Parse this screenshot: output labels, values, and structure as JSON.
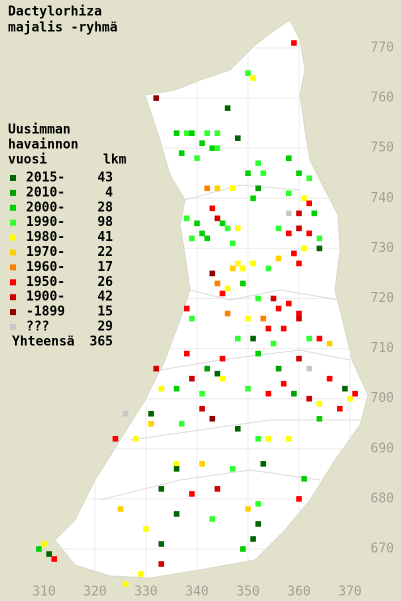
{
  "title_lines": [
    "Dactylorhiza",
    "majalis -ryhmä"
  ],
  "legend": {
    "heading_lines": [
      "Uusimman",
      "havainnon",
      "vuosi"
    ],
    "count_heading": "lkm",
    "entries": [
      {
        "label": "2015-",
        "count": 43,
        "color": "#006400"
      },
      {
        "label": "2010-",
        "count": 4,
        "color": "#00a000"
      },
      {
        "label": "2000-",
        "count": 28,
        "color": "#00d000"
      },
      {
        "label": "1990-",
        "count": 98,
        "color": "#30ff30"
      },
      {
        "label": "1980-",
        "count": 41,
        "color": "#ffff00"
      },
      {
        "label": "1970-",
        "count": 22,
        "color": "#ffd000"
      },
      {
        "label": "1960-",
        "count": 17,
        "color": "#ff8000"
      },
      {
        "label": "1950-",
        "count": 26,
        "color": "#ff0000"
      },
      {
        "label": "1900-",
        "count": 42,
        "color": "#d00000"
      },
      {
        "label": "-1899",
        "count": 15,
        "color": "#900000"
      },
      {
        "label": "???",
        "count": 29,
        "color": "#c8c8c8"
      }
    ],
    "total": {
      "label": "Yhteensä",
      "count": 365
    }
  },
  "grid": {
    "northing": [
      770,
      760,
      750,
      740,
      730,
      720,
      710,
      700,
      690,
      680,
      670
    ],
    "easting": [
      310,
      320,
      330,
      340,
      350,
      360,
      370
    ]
  },
  "observations": [
    [
      359,
      771,
      7
    ],
    [
      350,
      765,
      3
    ],
    [
      351,
      764,
      4
    ],
    [
      332,
      760,
      9
    ],
    [
      346,
      758,
      0
    ],
    [
      336,
      753,
      2
    ],
    [
      338,
      753,
      3
    ],
    [
      339,
      753,
      2
    ],
    [
      342,
      753,
      3
    ],
    [
      344,
      753,
      3
    ],
    [
      341,
      751,
      2
    ],
    [
      343,
      750,
      2
    ],
    [
      344,
      750,
      3
    ],
    [
      337,
      749,
      2
    ],
    [
      340,
      748,
      3
    ],
    [
      348,
      752,
      0
    ],
    [
      352,
      747,
      3
    ],
    [
      353,
      745,
      3
    ],
    [
      350,
      745,
      2
    ],
    [
      358,
      748,
      2
    ],
    [
      360,
      745,
      2
    ],
    [
      362,
      744,
      3
    ],
    [
      342,
      742,
      6
    ],
    [
      344,
      742,
      5
    ],
    [
      347,
      742,
      4
    ],
    [
      351,
      740,
      2
    ],
    [
      352,
      742,
      1
    ],
    [
      358,
      741,
      3
    ],
    [
      361,
      740,
      4
    ],
    [
      362,
      739,
      7
    ],
    [
      363,
      737,
      2
    ],
    [
      358,
      737,
      10
    ],
    [
      360,
      737,
      8
    ],
    [
      338,
      736,
      3
    ],
    [
      340,
      735,
      2
    ],
    [
      343,
      738,
      7
    ],
    [
      344,
      736,
      8
    ],
    [
      345,
      735,
      2
    ],
    [
      346,
      734,
      3
    ],
    [
      348,
      734,
      4
    ],
    [
      339,
      732,
      3
    ],
    [
      341,
      733,
      2
    ],
    [
      342,
      732,
      2
    ],
    [
      347,
      731,
      3
    ],
    [
      356,
      734,
      3
    ],
    [
      358,
      733,
      7
    ],
    [
      360,
      734,
      8
    ],
    [
      362,
      733,
      7
    ],
    [
      364,
      732,
      3
    ],
    [
      364,
      730,
      0
    ],
    [
      361,
      730,
      4
    ],
    [
      359,
      729,
      7
    ],
    [
      348,
      727,
      4
    ],
    [
      349,
      726,
      4
    ],
    [
      347,
      726,
      5
    ],
    [
      351,
      727,
      4
    ],
    [
      354,
      726,
      3
    ],
    [
      356,
      728,
      5
    ],
    [
      360,
      727,
      7
    ],
    [
      343,
      725,
      9
    ],
    [
      344,
      723,
      6
    ],
    [
      345,
      721,
      7
    ],
    [
      346,
      722,
      4
    ],
    [
      349,
      723,
      2
    ],
    [
      352,
      720,
      3
    ],
    [
      355,
      720,
      8
    ],
    [
      356,
      718,
      7
    ],
    [
      358,
      719,
      7
    ],
    [
      360,
      717,
      7
    ],
    [
      338,
      718,
      7
    ],
    [
      339,
      716,
      3
    ],
    [
      346,
      717,
      6
    ],
    [
      350,
      716,
      4
    ],
    [
      353,
      716,
      6
    ],
    [
      354,
      714,
      7
    ],
    [
      357,
      714,
      7
    ],
    [
      360,
      716,
      8
    ],
    [
      348,
      712,
      3
    ],
    [
      351,
      712,
      0
    ],
    [
      355,
      711,
      3
    ],
    [
      362,
      712,
      3
    ],
    [
      364,
      712,
      7
    ],
    [
      366,
      711,
      5
    ],
    [
      338,
      709,
      7
    ],
    [
      345,
      708,
      7
    ],
    [
      352,
      709,
      2
    ],
    [
      360,
      708,
      8
    ],
    [
      356,
      706,
      1
    ],
    [
      362,
      706,
      10
    ],
    [
      366,
      704,
      7
    ],
    [
      369,
      702,
      0
    ],
    [
      342,
      706,
      1
    ],
    [
      344,
      705,
      0
    ],
    [
      345,
      704,
      4
    ],
    [
      339,
      704,
      8
    ],
    [
      332,
      706,
      8
    ],
    [
      333,
      702,
      4
    ],
    [
      336,
      702,
      2
    ],
    [
      341,
      701,
      3
    ],
    [
      350,
      702,
      3
    ],
    [
      354,
      701,
      7
    ],
    [
      357,
      703,
      7
    ],
    [
      359,
      701,
      1
    ],
    [
      362,
      700,
      8
    ],
    [
      364,
      699,
      4
    ],
    [
      364,
      696,
      2
    ],
    [
      368,
      698,
      7
    ],
    [
      370,
      700,
      4
    ],
    [
      371,
      701,
      7
    ],
    [
      326,
      697,
      10
    ],
    [
      331,
      697,
      0
    ],
    [
      337,
      695,
      3
    ],
    [
      341,
      698,
      8
    ],
    [
      343,
      696,
      9
    ],
    [
      348,
      694,
      0
    ],
    [
      352,
      692,
      3
    ],
    [
      354,
      692,
      4
    ],
    [
      358,
      692,
      4
    ],
    [
      331,
      695,
      5
    ],
    [
      324,
      692,
      7
    ],
    [
      328,
      692,
      4
    ],
    [
      336,
      687,
      4
    ],
    [
      336,
      686,
      0
    ],
    [
      347,
      686,
      3
    ],
    [
      353,
      687,
      0
    ],
    [
      341,
      687,
      5
    ],
    [
      361,
      684,
      2
    ],
    [
      344,
      682,
      8
    ],
    [
      339,
      681,
      7
    ],
    [
      333,
      682,
      0
    ],
    [
      360,
      680,
      7
    ],
    [
      352,
      679,
      3
    ],
    [
      350,
      678,
      5
    ],
    [
      325,
      678,
      5
    ],
    [
      336,
      677,
      0
    ],
    [
      343,
      676,
      3
    ],
    [
      352,
      675,
      0
    ],
    [
      330,
      674,
      4
    ],
    [
      351,
      672,
      0
    ],
    [
      349,
      670,
      2
    ],
    [
      333,
      671,
      0
    ],
    [
      310,
      671,
      4
    ],
    [
      309,
      670,
      2
    ],
    [
      311,
      669,
      0
    ],
    [
      312,
      668,
      7
    ],
    [
      326,
      663,
      4
    ],
    [
      329,
      665,
      4
    ],
    [
      333,
      667,
      8
    ]
  ]
}
